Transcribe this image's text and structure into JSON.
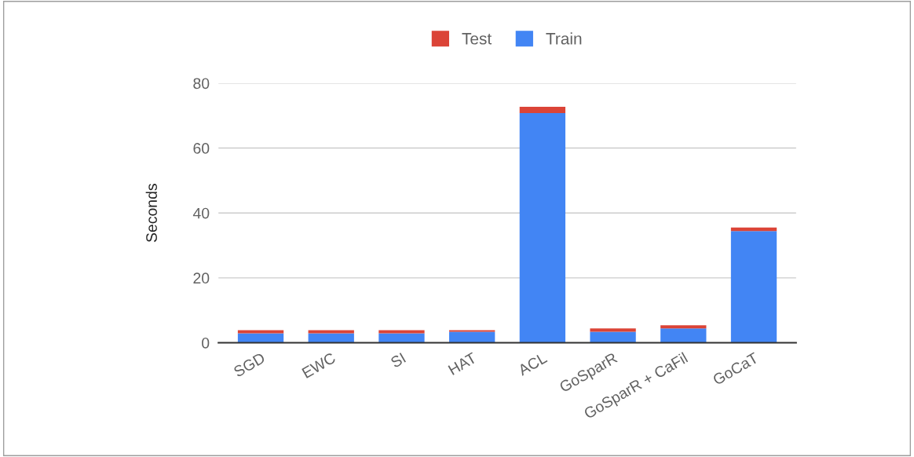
{
  "chart_data": {
    "type": "bar",
    "stacked": true,
    "ylabel": "Seconds",
    "categories": [
      "SGD",
      "EWC",
      "SI",
      "HAT",
      "ACL",
      "GoSparR",
      "GoSparR + CaFil",
      "GoCaT"
    ],
    "series": [
      {
        "name": "Train",
        "color": "#4285f4",
        "values": [
          2.9,
          2.9,
          2.9,
          3.4,
          70.8,
          3.4,
          4.4,
          34.4
        ]
      },
      {
        "name": "Test",
        "color": "#db4437",
        "values": [
          1.0,
          1.0,
          1.0,
          0.5,
          1.9,
          1.0,
          1.0,
          1.1
        ]
      }
    ],
    "ylim": [
      0,
      80
    ],
    "yticks": [
      0,
      20,
      40,
      60,
      80
    ],
    "grid": "y",
    "legend": "top"
  }
}
